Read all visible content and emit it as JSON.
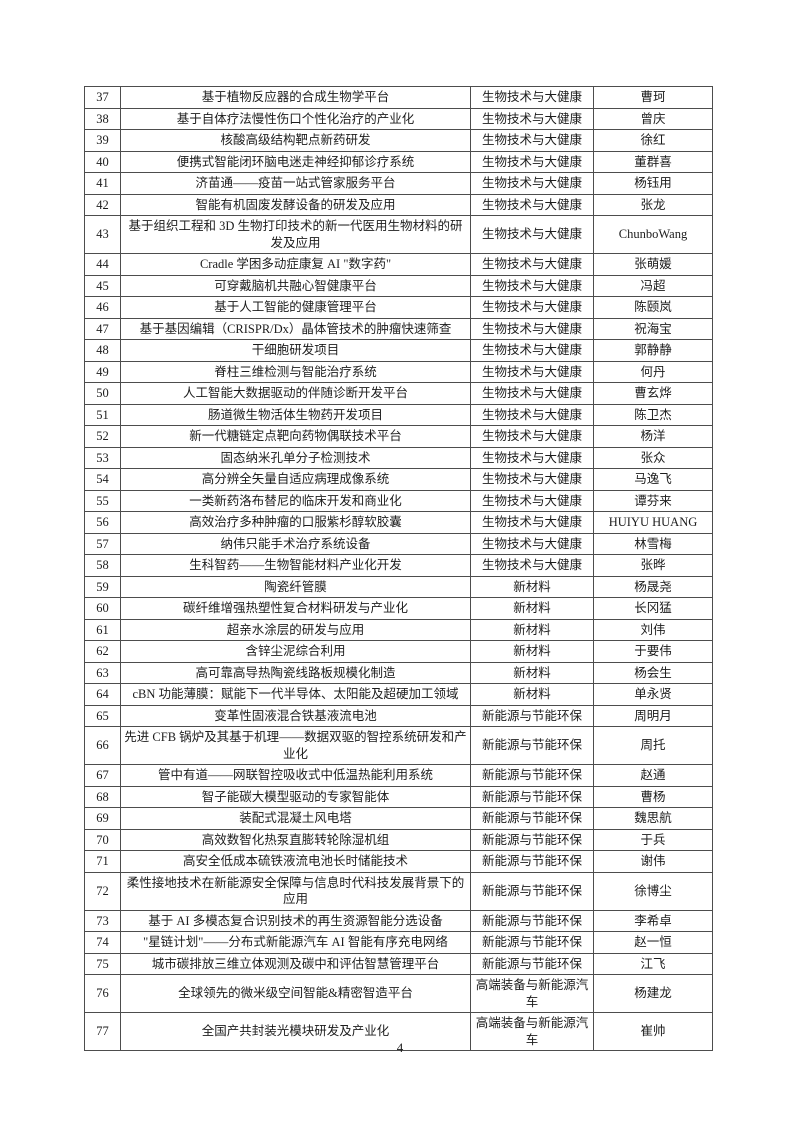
{
  "page": {
    "number": "4"
  },
  "colors": {
    "table_border": "#4d4d4d",
    "text": "#1c1c1c",
    "page_background": "#ffffff"
  },
  "table": {
    "rows": [
      {
        "no": "37",
        "name": "基于植物反应器的合成生物学平台",
        "category": "生物技术与大健康",
        "person": "曹珂"
      },
      {
        "no": "38",
        "name": "基于自体疗法慢性伤口个性化治疗的产业化",
        "category": "生物技术与大健康",
        "person": "曾庆"
      },
      {
        "no": "39",
        "name": "核酸高级结构靶点新药研发",
        "category": "生物技术与大健康",
        "person": "徐红"
      },
      {
        "no": "40",
        "name": "便携式智能闭环脑电迷走神经抑郁诊疗系统",
        "category": "生物技术与大健康",
        "person": "董群喜"
      },
      {
        "no": "41",
        "name": "济苗通——疫苗一站式管家服务平台",
        "category": "生物技术与大健康",
        "person": "杨钰用"
      },
      {
        "no": "42",
        "name": "智能有机固废发酵设备的研发及应用",
        "category": "生物技术与大健康",
        "person": "张龙"
      },
      {
        "no": "43",
        "name": "基于组织工程和 3D 生物打印技术的新一代医用生物材料的研发及应用",
        "category": "生物技术与大健康",
        "person": "ChunboWang"
      },
      {
        "no": "44",
        "name": "Cradle 学困多动症康复 AI \"数字药\"",
        "category": "生物技术与大健康",
        "person": "张萌媛"
      },
      {
        "no": "45",
        "name": "可穿戴脑机共融心智健康平台",
        "category": "生物技术与大健康",
        "person": "冯超"
      },
      {
        "no": "46",
        "name": "基于人工智能的健康管理平台",
        "category": "生物技术与大健康",
        "person": "陈颐岚"
      },
      {
        "no": "47",
        "name": "基于基因编辑（CRISPR/Dx）晶体管技术的肿瘤快速筛查",
        "category": "生物技术与大健康",
        "person": "祝海宝"
      },
      {
        "no": "48",
        "name": "干细胞研发项目",
        "category": "生物技术与大健康",
        "person": "郭静静"
      },
      {
        "no": "49",
        "name": "脊柱三维检测与智能治疗系统",
        "category": "生物技术与大健康",
        "person": "何丹"
      },
      {
        "no": "50",
        "name": "人工智能大数据驱动的伴随诊断开发平台",
        "category": "生物技术与大健康",
        "person": "曹玄烨"
      },
      {
        "no": "51",
        "name": "肠道微生物活体生物药开发项目",
        "category": "生物技术与大健康",
        "person": "陈卫杰"
      },
      {
        "no": "52",
        "name": "新一代糖链定点靶向药物偶联技术平台",
        "category": "生物技术与大健康",
        "person": "杨洋"
      },
      {
        "no": "53",
        "name": "固态纳米孔单分子检测技术",
        "category": "生物技术与大健康",
        "person": "张众"
      },
      {
        "no": "54",
        "name": "高分辨全矢量自适应病理成像系统",
        "category": "生物技术与大健康",
        "person": "马逸飞"
      },
      {
        "no": "55",
        "name": "一类新药洛布替尼的临床开发和商业化",
        "category": "生物技术与大健康",
        "person": "谭芬来"
      },
      {
        "no": "56",
        "name": "高效治疗多种肿瘤的口服紫杉醇软胶囊",
        "category": "生物技术与大健康",
        "person": "HUIYU HUANG"
      },
      {
        "no": "57",
        "name": "纳伟只能手术治疗系统设备",
        "category": "生物技术与大健康",
        "person": "林雪梅"
      },
      {
        "no": "58",
        "name": "生科智药——生物智能材料产业化开发",
        "category": "生物技术与大健康",
        "person": "张晔"
      },
      {
        "no": "59",
        "name": "陶瓷纤管膜",
        "category": "新材料",
        "person": "杨晟尧"
      },
      {
        "no": "60",
        "name": "碳纤维增强热塑性复合材料研发与产业化",
        "category": "新材料",
        "person": "长冈猛"
      },
      {
        "no": "61",
        "name": "超亲水涂层的研发与应用",
        "category": "新材料",
        "person": "刘伟"
      },
      {
        "no": "62",
        "name": "含锌尘泥综合利用",
        "category": "新材料",
        "person": "于要伟"
      },
      {
        "no": "63",
        "name": "高可靠高导热陶瓷线路板规模化制造",
        "category": "新材料",
        "person": "杨会生"
      },
      {
        "no": "64",
        "name": "cBN 功能薄膜：赋能下一代半导体、太阳能及超硬加工领域",
        "category": "新材料",
        "person": "单永贤"
      },
      {
        "no": "65",
        "name": "变革性固液混合铁基液流电池",
        "category": "新能源与节能环保",
        "person": "周明月"
      },
      {
        "no": "66",
        "name": "先进 CFB 锅炉及其基于机理——数据双驱的智控系统研发和产业化",
        "category": "新能源与节能环保",
        "person": "周托"
      },
      {
        "no": "67",
        "name": "管中有道——网联智控吸收式中低温热能利用系统",
        "category": "新能源与节能环保",
        "person": "赵通"
      },
      {
        "no": "68",
        "name": "智子能碳大模型驱动的专家智能体",
        "category": "新能源与节能环保",
        "person": "曹杨"
      },
      {
        "no": "69",
        "name": "装配式混凝土风电塔",
        "category": "新能源与节能环保",
        "person": "魏思航"
      },
      {
        "no": "70",
        "name": "高效数智化热泵直膨转轮除湿机组",
        "category": "新能源与节能环保",
        "person": "于兵"
      },
      {
        "no": "71",
        "name": "高安全低成本硫铁液流电池长时储能技术",
        "category": "新能源与节能环保",
        "person": "谢伟"
      },
      {
        "no": "72",
        "name": "柔性接地技术在新能源安全保障与信息时代科技发展背景下的应用",
        "category": "新能源与节能环保",
        "person": "徐博尘"
      },
      {
        "no": "73",
        "name": "基于 AI 多模态复合识别技术的再生资源智能分选设备",
        "category": "新能源与节能环保",
        "person": "李希卓"
      },
      {
        "no": "74",
        "name": "\"星链计划\"——分布式新能源汽车 AI 智能有序充电网络",
        "category": "新能源与节能环保",
        "person": "赵一恒"
      },
      {
        "no": "75",
        "name": "城市碳排放三维立体观测及碳中和评估智慧管理平台",
        "category": "新能源与节能环保",
        "person": "江飞"
      },
      {
        "no": "76",
        "name": "全球领先的微米级空间智能&精密智造平台",
        "category": "高端装备与新能源汽车",
        "person": "杨建龙"
      },
      {
        "no": "77",
        "name": "全国产共封装光模块研发及产业化",
        "category": "高端装备与新能源汽车",
        "person": "崔帅"
      }
    ]
  }
}
